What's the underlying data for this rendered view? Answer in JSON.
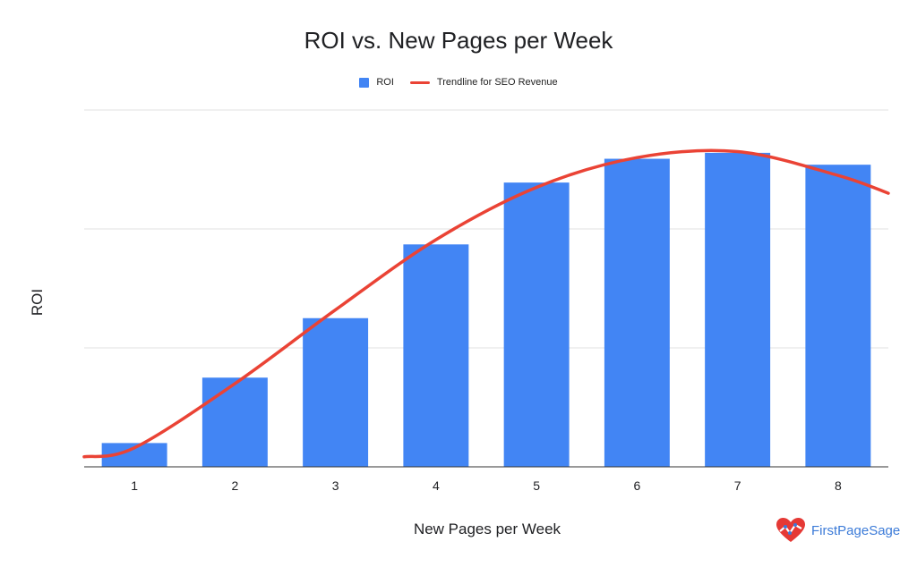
{
  "chart_data": {
    "type": "bar",
    "title": "ROI vs. New Pages per Week",
    "xlabel": "New Pages per Week",
    "ylabel": "ROI",
    "categories": [
      "1",
      "2",
      "3",
      "4",
      "5",
      "6",
      "7",
      "8"
    ],
    "series": [
      {
        "name": "ROI",
        "type": "bar",
        "color": "#4285f4",
        "values": [
          0.2,
          0.75,
          1.25,
          1.87,
          2.39,
          2.59,
          2.64,
          2.54
        ]
      },
      {
        "name": "Trendline for SEO Revenue",
        "type": "line",
        "color": "#ea4335",
        "values": [
          0.16,
          0.7,
          1.32,
          1.91,
          2.35,
          2.6,
          2.65,
          2.45
        ]
      }
    ],
    "ylim": [
      0,
      3
    ],
    "grid": true,
    "legend_position": "top-center"
  },
  "branding": {
    "text": "FirstPageSage",
    "color": "#3c7bd8",
    "heart_color": "#e53935"
  }
}
